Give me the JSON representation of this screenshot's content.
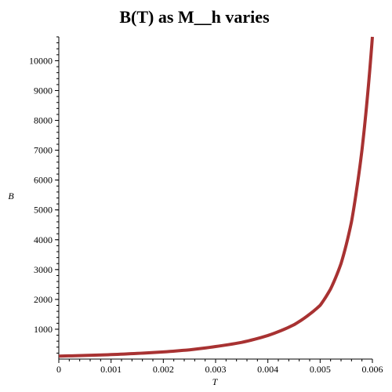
{
  "chart_data": {
    "type": "line",
    "title": "B(T) as M__h varies",
    "xlabel": "T",
    "ylabel": "B",
    "xlim": [
      0,
      0.006
    ],
    "ylim": [
      0,
      10800
    ],
    "x_ticks": [
      0,
      0.001,
      0.002,
      0.003,
      0.004,
      0.005,
      0.006
    ],
    "x_tick_labels": [
      "0",
      "0.001",
      "0.002",
      "0.003",
      "0.004",
      "0.005",
      "0.006"
    ],
    "y_ticks": [
      1000,
      2000,
      3000,
      4000,
      5000,
      6000,
      7000,
      8000,
      9000,
      10000
    ],
    "y_tick_labels": [
      "1000",
      "2000",
      "3000",
      "4000",
      "5000",
      "6000",
      "7000",
      "8000",
      "9000",
      "10000"
    ],
    "grid": false,
    "series": [
      {
        "color": "#a83232",
        "x": [
          0,
          0.0005,
          0.001,
          0.0015,
          0.002,
          0.0025,
          0.003,
          0.0035,
          0.004,
          0.0045,
          0.005,
          0.0052,
          0.0054,
          0.0056,
          0.0057,
          0.0058,
          0.0059,
          0.006
        ],
        "y": [
          100,
          120,
          150,
          190,
          240,
          310,
          420,
          560,
          790,
          1150,
          1800,
          2350,
          3200,
          4600,
          5700,
          7000,
          8700,
          10800
        ]
      }
    ]
  }
}
